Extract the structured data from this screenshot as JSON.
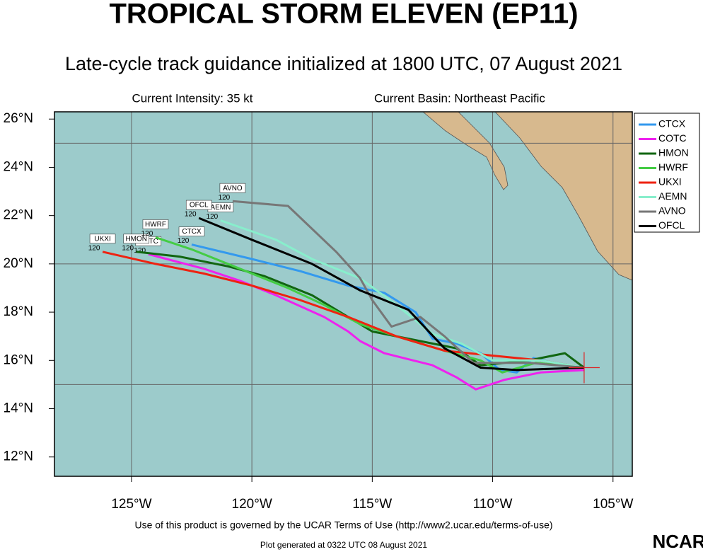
{
  "chart_data": {
    "type": "track",
    "title": "TROPICAL STORM ELEVEN (EP11)",
    "subtitle": "Late-cycle track guidance initialized at 1800 UTC, 07 August 2021",
    "intensity": "Current Intensity: 35 kt",
    "basin": "Current Basin: Northeast Pacific",
    "footer": "Use of this product is governed by the UCAR Terms of Use (http://www2.ucar.edu/terms-of-use)",
    "generated": "Plot generated at 0322 UTC   08 August 2021",
    "logo": "NCAR",
    "end_label_hour": "120",
    "xlim": [
      -128.2,
      -104.2
    ],
    "ylim": [
      11.2,
      26.3
    ],
    "xticks": [
      {
        "value": -125,
        "label": "125°W"
      },
      {
        "value": -120,
        "label": "120°W"
      },
      {
        "value": -115,
        "label": "115°W"
      },
      {
        "value": -110,
        "label": "110°W"
      },
      {
        "value": -105,
        "label": "105°W"
      }
    ],
    "yticks": [
      {
        "value": 12,
        "label": "12°N"
      },
      {
        "value": 14,
        "label": "14°N"
      },
      {
        "value": 16,
        "label": "16°N"
      },
      {
        "value": 18,
        "label": "18°N"
      },
      {
        "value": 20,
        "label": "20°N"
      },
      {
        "value": 22,
        "label": "22°N"
      },
      {
        "value": 24,
        "label": "24°N"
      },
      {
        "value": 26,
        "label": "26°N"
      }
    ],
    "ygrid": [
      15,
      20,
      25
    ],
    "current_position": [
      -106.2,
      15.7
    ],
    "series": [
      {
        "name": "CTCX",
        "color": "#3399ee",
        "x": [
          -106.2,
          -107.5,
          -108.3,
          -109.0,
          -109.7,
          -110.5,
          -111.5,
          -112.5,
          -113.2,
          -114.5,
          -116.0,
          -118.0,
          -120.0,
          -122.5
        ],
        "values": [
          15.7,
          15.9,
          16.1,
          15.5,
          15.6,
          16.3,
          16.7,
          16.9,
          18.0,
          18.8,
          19.1,
          19.7,
          20.2,
          20.8
        ]
      },
      {
        "name": "COTC",
        "color": "#ee22ee",
        "x": [
          -106.2,
          -108.0,
          -109.5,
          -110.7,
          -111.5,
          -112.5,
          -114.5,
          -115.5,
          -116.0,
          -117.0,
          -119.0,
          -120.5,
          -122.0,
          -124.3
        ],
        "values": [
          15.6,
          15.5,
          15.2,
          14.8,
          15.3,
          15.8,
          16.3,
          16.8,
          17.2,
          17.8,
          18.7,
          19.3,
          19.8,
          20.4
        ]
      },
      {
        "name": "HMON",
        "color": "#116611",
        "x": [
          -106.2,
          -107.0,
          -108.5,
          -110.5,
          -111.5,
          -113.5,
          -115.0,
          -116.0,
          -117.5,
          -119.5,
          -121.0,
          -123.0,
          -124.8
        ],
        "values": [
          15.7,
          16.3,
          16.0,
          15.8,
          16.5,
          16.9,
          17.2,
          17.8,
          18.7,
          19.5,
          19.9,
          20.3,
          20.5
        ]
      },
      {
        "name": "HWRF",
        "color": "#44cc44",
        "x": [
          -106.2,
          -108.2,
          -109.6,
          -110.5,
          -112.0,
          -114.0,
          -115.5,
          -117.0,
          -118.5,
          -120.5,
          -122.5,
          -124.0
        ],
        "values": [
          15.7,
          15.9,
          15.5,
          16.0,
          16.4,
          17.0,
          17.5,
          18.3,
          19.0,
          19.8,
          20.6,
          21.1
        ]
      },
      {
        "name": "UKXI",
        "color": "#ee2211",
        "x": [
          -106.2,
          -108.0,
          -110.0,
          -112.0,
          -114.0,
          -116.0,
          -118.0,
          -120.0,
          -122.0,
          -124.0,
          -126.2
        ],
        "values": [
          15.7,
          16.0,
          16.2,
          16.4,
          17.0,
          17.8,
          18.5,
          19.1,
          19.6,
          20.0,
          20.5
        ]
      },
      {
        "name": "AEMN",
        "color": "#88eecc",
        "x": [
          -106.2,
          -108.0,
          -110.0,
          -111.3,
          -112.5,
          -114.0,
          -115.5,
          -117.5,
          -119.0,
          -121.3
        ],
        "values": [
          15.7,
          16.0,
          16.0,
          16.7,
          17.1,
          18.3,
          19.4,
          20.2,
          21.0,
          21.8
        ]
      },
      {
        "name": "AVNO",
        "color": "#777777",
        "x": [
          -106.2,
          -108.5,
          -110.8,
          -112.0,
          -113.0,
          -114.2,
          -115.0,
          -115.5,
          -116.5,
          -118.5,
          -120.8
        ],
        "values": [
          15.7,
          15.9,
          15.9,
          17.0,
          17.8,
          17.4,
          18.5,
          19.4,
          20.5,
          22.4,
          22.6
        ]
      },
      {
        "name": "OFCL",
        "color": "#000000",
        "x": [
          -106.2,
          -109.0,
          -110.5,
          -112.0,
          -113.5,
          -115.5,
          -117.5,
          -120.0,
          -122.2
        ],
        "values": [
          15.7,
          15.6,
          15.7,
          16.5,
          18.1,
          18.9,
          20.0,
          21.0,
          21.9
        ]
      }
    ]
  }
}
